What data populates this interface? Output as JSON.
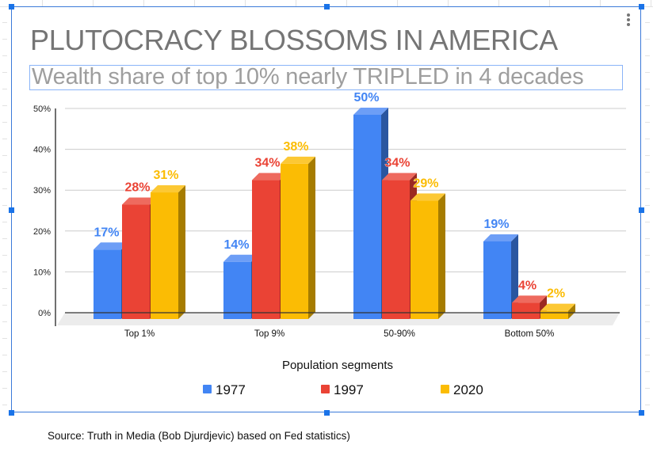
{
  "chart_data": {
    "type": "bar",
    "style": "3d-clustered-column",
    "title": "PLUTOCRACY BLOSSOMS IN AMERICA",
    "subtitle": "Wealth share of top 10% nearly TRIPLED in 4 decades",
    "xlabel": "Population segments",
    "ylabel": "",
    "categories": [
      "Top 1%",
      "Top 9%",
      "50-90%",
      "Bottom 50%"
    ],
    "series": [
      {
        "name": "1977",
        "color": "#4285f4",
        "side_color": "#2a56a0",
        "top_color": "#6d9ef6",
        "values": [
          17,
          14,
          50,
          19
        ],
        "labels": [
          "17%",
          "14%",
          "50%",
          "19%"
        ]
      },
      {
        "name": "1997",
        "color": "#ea4335",
        "side_color": "#9c2a21",
        "top_color": "#ee6a5e",
        "values": [
          28,
          34,
          34,
          4
        ],
        "labels": [
          "28%",
          "34%",
          "34%",
          "4%"
        ]
      },
      {
        "name": "2020",
        "color": "#fbbc04",
        "side_color": "#a67c00",
        "top_color": "#fcc834",
        "values": [
          31,
          38,
          29,
          2
        ],
        "labels": [
          "31%",
          "38%",
          "29%",
          "2%"
        ]
      }
    ],
    "yticks": [
      "0%",
      "10%",
      "20%",
      "30%",
      "40%",
      "50%"
    ],
    "ytick_values": [
      0,
      10,
      20,
      30,
      40,
      50
    ],
    "ylim": [
      0,
      50
    ],
    "grid": true,
    "legend": "bottom"
  },
  "app": {
    "menu_icon": "kebab-menu-icon"
  },
  "footer": {
    "source": "Source: Truth in Media (Bob Djurdjevic) based on Fed statistics)"
  }
}
